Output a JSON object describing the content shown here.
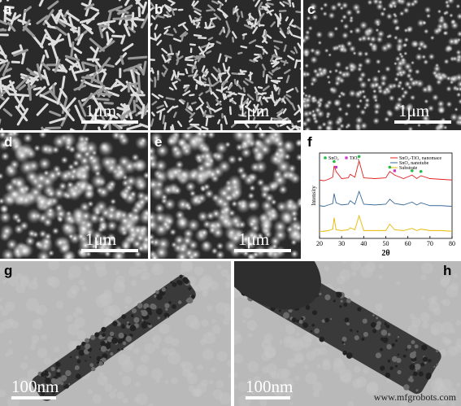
{
  "panels": [
    {
      "label": "a",
      "scale_bar": "1μm"
    },
    {
      "label": "b",
      "scale_bar": "1μm"
    },
    {
      "label": "c",
      "scale_bar": "1μm"
    },
    {
      "label": "d",
      "scale_bar": "1μm"
    },
    {
      "label": "e",
      "scale_bar": "1μm"
    },
    {
      "label": "f"
    },
    {
      "label": "g",
      "scale_bar": "100nm"
    },
    {
      "label": "h",
      "scale_bar": "100nm"
    }
  ],
  "chart_data": {
    "type": "line",
    "x_label": "2θ",
    "y_label": "Intensity",
    "xlim": [
      20,
      80
    ],
    "xticks": [
      20,
      30,
      40,
      50,
      60,
      70,
      80
    ],
    "ylim": [
      0,
      12
    ],
    "x": [
      20,
      22,
      24,
      26,
      26.6,
      27.5,
      30,
      33,
      33.9,
      36,
      37.9,
      40,
      45,
      50,
      51.8,
      54,
      58,
      61.9,
      64,
      65.9,
      70,
      75,
      80
    ],
    "series": [
      {
        "name": "SnO₂-TiO₂ nanomace",
        "color": "#e02020",
        "values": [
          8.2,
          8.1,
          8.3,
          8.6,
          10.2,
          9.4,
          8.4,
          8.5,
          9.0,
          8.6,
          10.9,
          8.5,
          8.4,
          8.5,
          9.4,
          8.9,
          8.4,
          8.9,
          8.4,
          8.8,
          8.4,
          8.3,
          8.2
        ]
      },
      {
        "name": "SnO₂ nanotube",
        "color": "#3a6a9a",
        "values": [
          4.6,
          4.5,
          4.7,
          4.9,
          6.3,
          5.0,
          4.7,
          4.8,
          5.3,
          4.8,
          6.6,
          4.8,
          4.7,
          4.8,
          5.5,
          4.9,
          4.7,
          5.1,
          4.7,
          5.0,
          4.6,
          4.6,
          4.5
        ]
      },
      {
        "name": "Substrate",
        "color": "#e8b800",
        "values": [
          1.0,
          1.0,
          1.1,
          1.3,
          2.9,
          1.2,
          1.1,
          1.2,
          1.5,
          1.2,
          3.2,
          1.1,
          1.1,
          1.1,
          2.0,
          1.2,
          1.1,
          1.4,
          1.1,
          1.3,
          1.1,
          1.1,
          1.0
        ]
      }
    ],
    "markers": [
      {
        "name": "SnO₂",
        "color": "#22bb44",
        "x": [
          26.6,
          37.9,
          51.8,
          61.9,
          65.9
        ],
        "values": [
          10.8,
          11.5,
          10.0,
          9.5,
          9.4
        ]
      },
      {
        "name": "TiO₂",
        "color": "#cc33cc",
        "x": [
          27.5,
          54
        ],
        "values": [
          10.0,
          9.5
        ]
      }
    ]
  },
  "watermark": "www.mfgrobots.com"
}
